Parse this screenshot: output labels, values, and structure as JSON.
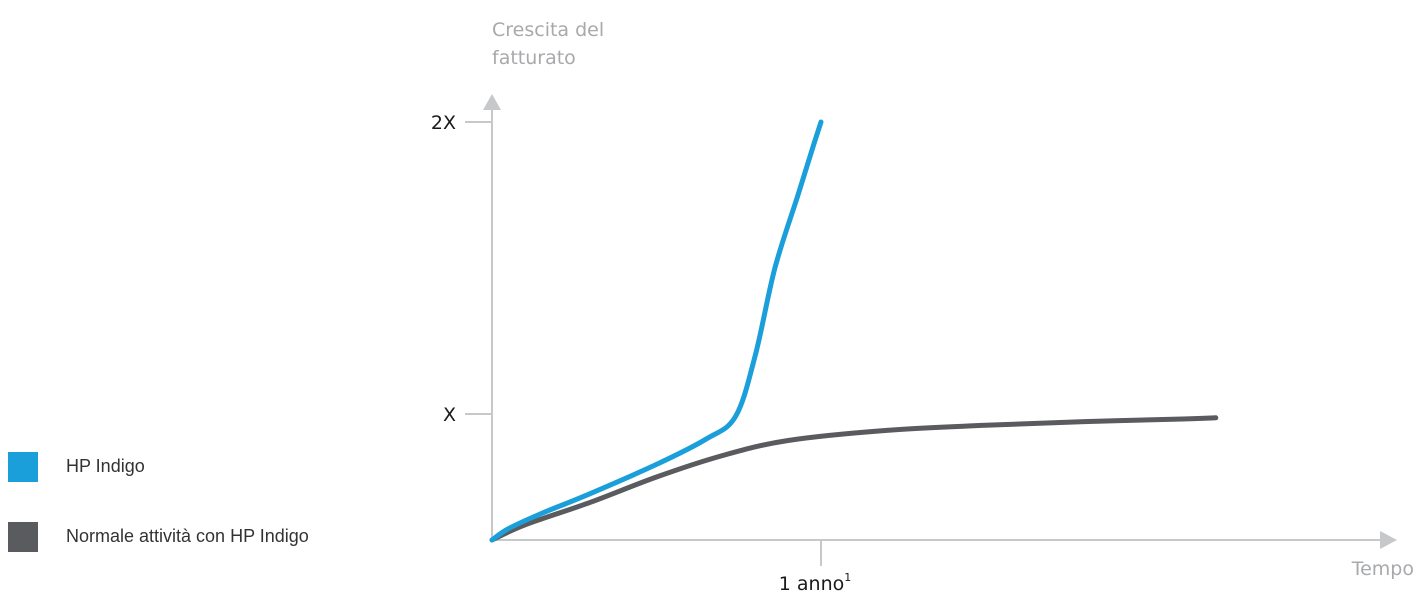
{
  "chart_data": {
    "type": "line",
    "ylabel_lines": [
      "Crescita del",
      "fatturato"
    ],
    "xlabel": "Tempo",
    "y_ticks": [
      {
        "value": 1,
        "label": "X"
      },
      {
        "value": 2,
        "label": "2X"
      }
    ],
    "x_ticks": [
      {
        "value": 1,
        "label": "1 anno",
        "superscript": "1"
      }
    ],
    "xlim": [
      0,
      2.6
    ],
    "ylim": [
      0,
      2.05
    ],
    "grid": false,
    "legend_position": "left",
    "series": [
      {
        "name": "HP Indigo",
        "color": "#1a9fdb",
        "x": [
          0,
          0.05,
          0.15,
          0.3,
          0.5,
          0.65,
          0.74,
          0.8,
          0.86,
          0.93,
          0.98,
          1.0
        ],
        "y": [
          0,
          0.09,
          0.21,
          0.37,
          0.6,
          0.8,
          0.98,
          1.2,
          1.5,
          1.75,
          1.93,
          2.0
        ]
      },
      {
        "name": "Normale attività con HP Indigo",
        "color": "#5a5b5f",
        "x": [
          0,
          0.1,
          0.3,
          0.5,
          0.7,
          0.9,
          1.2,
          1.5,
          1.8,
          2.1,
          2.2
        ],
        "y": [
          0,
          0.12,
          0.3,
          0.5,
          0.67,
          0.79,
          0.87,
          0.91,
          0.94,
          0.96,
          0.97
        ]
      }
    ]
  }
}
